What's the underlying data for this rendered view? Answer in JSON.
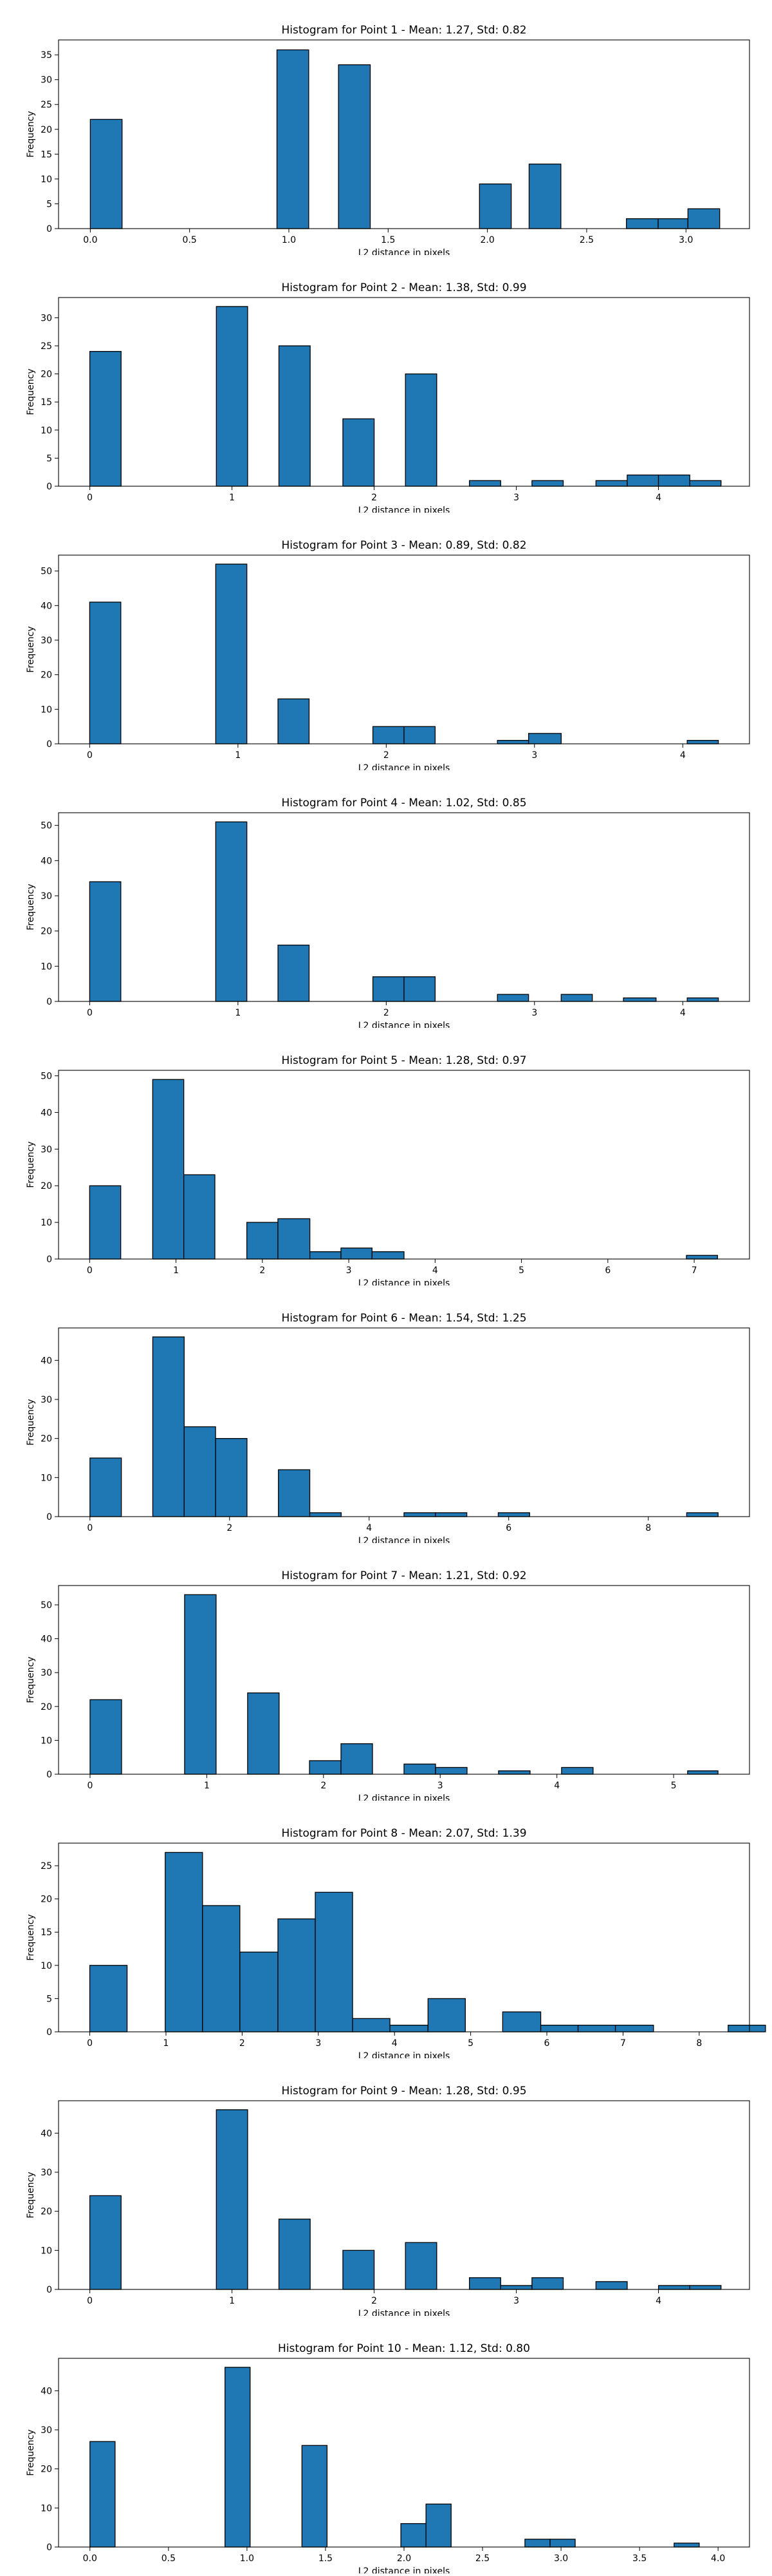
{
  "chart_data": [
    {
      "type": "bar",
      "title": "Histogram for Point 1 - Mean: 1.27, Std: 0.82",
      "xlabel": "L2 distance in pixels",
      "ylabel": "Frequency",
      "color": "#1f77b4",
      "xlim": [
        -0.16,
        3.32
      ],
      "ylim": [
        0,
        38
      ],
      "xticks": [
        0.0,
        0.5,
        1.0,
        1.5,
        2.0,
        2.5,
        3.0
      ],
      "xtick_labels": [
        "0.0",
        "0.5",
        "1.0",
        "1.5",
        "2.0",
        "2.5",
        "3.0"
      ],
      "yticks": [
        0,
        5,
        10,
        15,
        20,
        25,
        30,
        35
      ],
      "bins": [
        {
          "x0": 0.0,
          "x1": 0.16,
          "count": 22
        },
        {
          "x0": 0.94,
          "x1": 1.1,
          "count": 36
        },
        {
          "x0": 1.25,
          "x1": 1.41,
          "count": 33
        },
        {
          "x0": 1.96,
          "x1": 2.12,
          "count": 9
        },
        {
          "x0": 2.21,
          "x1": 2.37,
          "count": 13
        },
        {
          "x0": 2.7,
          "x1": 2.86,
          "count": 2
        },
        {
          "x0": 2.86,
          "x1": 3.01,
          "count": 2
        },
        {
          "x0": 3.01,
          "x1": 3.17,
          "count": 4
        }
      ]
    },
    {
      "type": "bar",
      "title": "Histogram for Point 2 - Mean: 1.38, Std: 0.99",
      "xlabel": "L2 distance in pixels",
      "ylabel": "Frequency",
      "color": "#1f77b4",
      "xlim": [
        -0.22,
        4.64
      ],
      "ylim": [
        0,
        33.6
      ],
      "xticks": [
        0,
        1,
        2,
        3,
        4
      ],
      "xtick_labels": [
        "0",
        "1",
        "2",
        "3",
        "4"
      ],
      "yticks": [
        0,
        5,
        10,
        15,
        20,
        25,
        30
      ],
      "bins": [
        {
          "x0": 0.0,
          "x1": 0.22,
          "count": 24
        },
        {
          "x0": 0.89,
          "x1": 1.11,
          "count": 32
        },
        {
          "x0": 1.33,
          "x1": 1.55,
          "count": 25
        },
        {
          "x0": 1.78,
          "x1": 2.0,
          "count": 12
        },
        {
          "x0": 2.22,
          "x1": 2.44,
          "count": 20
        },
        {
          "x0": 2.67,
          "x1": 2.89,
          "count": 1
        },
        {
          "x0": 3.11,
          "x1": 3.33,
          "count": 1
        },
        {
          "x0": 3.56,
          "x1": 3.78,
          "count": 1
        },
        {
          "x0": 3.78,
          "x1": 4.0,
          "count": 2
        },
        {
          "x0": 4.0,
          "x1": 4.22,
          "count": 2
        },
        {
          "x0": 4.22,
          "x1": 4.44,
          "count": 1
        }
      ]
    },
    {
      "type": "bar",
      "title": "Histogram for Point 3 - Mean: 0.89, Std: 0.82",
      "xlabel": "L2 distance in pixels",
      "ylabel": "Frequency",
      "color": "#1f77b4",
      "xlim": [
        -0.21,
        4.45
      ],
      "ylim": [
        0,
        54.6
      ],
      "xticks": [
        0,
        1,
        2,
        3,
        4
      ],
      "xtick_labels": [
        "0",
        "1",
        "2",
        "3",
        "4"
      ],
      "yticks": [
        0,
        10,
        20,
        30,
        40,
        50
      ],
      "bins": [
        {
          "x0": 0.0,
          "x1": 0.21,
          "count": 41
        },
        {
          "x0": 0.85,
          "x1": 1.06,
          "count": 52
        },
        {
          "x0": 1.27,
          "x1": 1.48,
          "count": 13
        },
        {
          "x0": 1.91,
          "x1": 2.12,
          "count": 5
        },
        {
          "x0": 2.12,
          "x1": 2.33,
          "count": 5
        },
        {
          "x0": 2.75,
          "x1": 2.96,
          "count": 1
        },
        {
          "x0": 2.96,
          "x1": 3.18,
          "count": 3
        },
        {
          "x0": 4.03,
          "x1": 4.24,
          "count": 1
        }
      ]
    },
    {
      "type": "bar",
      "title": "Histogram for Point 4 - Mean: 1.02, Std: 0.85",
      "xlabel": "L2 distance in pixels",
      "ylabel": "Frequency",
      "color": "#1f77b4",
      "xlim": [
        -0.21,
        4.45
      ],
      "ylim": [
        0,
        53.6
      ],
      "xticks": [
        0,
        1,
        2,
        3,
        4
      ],
      "xtick_labels": [
        "0",
        "1",
        "2",
        "3",
        "4"
      ],
      "yticks": [
        0,
        10,
        20,
        30,
        40,
        50
      ],
      "bins": [
        {
          "x0": 0.0,
          "x1": 0.21,
          "count": 34
        },
        {
          "x0": 0.85,
          "x1": 1.06,
          "count": 51
        },
        {
          "x0": 1.27,
          "x1": 1.48,
          "count": 16
        },
        {
          "x0": 1.91,
          "x1": 2.12,
          "count": 7
        },
        {
          "x0": 2.12,
          "x1": 2.33,
          "count": 7
        },
        {
          "x0": 2.75,
          "x1": 2.96,
          "count": 2
        },
        {
          "x0": 3.18,
          "x1": 3.39,
          "count": 2
        },
        {
          "x0": 3.6,
          "x1": 3.82,
          "count": 1
        },
        {
          "x0": 4.03,
          "x1": 4.24,
          "count": 1
        }
      ]
    },
    {
      "type": "bar",
      "title": "Histogram for Point 5 - Mean: 1.28, Std: 0.97",
      "xlabel": "L2 distance in pixels",
      "ylabel": "Frequency",
      "color": "#1f77b4",
      "xlim": [
        -0.36,
        7.64
      ],
      "ylim": [
        0,
        51.5
      ],
      "xticks": [
        0,
        1,
        2,
        3,
        4,
        5,
        6,
        7
      ],
      "xtick_labels": [
        "0",
        "1",
        "2",
        "3",
        "4",
        "5",
        "6",
        "7"
      ],
      "yticks": [
        0,
        10,
        20,
        30,
        40,
        50
      ],
      "bins": [
        {
          "x0": 0.0,
          "x1": 0.36,
          "count": 20
        },
        {
          "x0": 0.73,
          "x1": 1.09,
          "count": 49
        },
        {
          "x0": 1.09,
          "x1": 1.45,
          "count": 23
        },
        {
          "x0": 1.82,
          "x1": 2.18,
          "count": 10
        },
        {
          "x0": 2.18,
          "x1": 2.55,
          "count": 11
        },
        {
          "x0": 2.55,
          "x1": 2.91,
          "count": 2
        },
        {
          "x0": 2.91,
          "x1": 3.27,
          "count": 3
        },
        {
          "x0": 3.27,
          "x1": 3.64,
          "count": 2
        },
        {
          "x0": 6.91,
          "x1": 7.27,
          "count": 1
        }
      ]
    },
    {
      "type": "bar",
      "title": "Histogram for Point 6 - Mean: 1.54, Std: 1.25",
      "xlabel": "L2 distance in pixels",
      "ylabel": "Frequency",
      "color": "#1f77b4",
      "xlim": [
        -0.45,
        9.45
      ],
      "ylim": [
        0,
        48.3
      ],
      "xticks": [
        0,
        2,
        4,
        6,
        8
      ],
      "xtick_labels": [
        "0",
        "2",
        "4",
        "6",
        "8"
      ],
      "yticks": [
        0,
        10,
        20,
        30,
        40
      ],
      "bins": [
        {
          "x0": 0.0,
          "x1": 0.45,
          "count": 15
        },
        {
          "x0": 0.9,
          "x1": 1.35,
          "count": 46
        },
        {
          "x0": 1.35,
          "x1": 1.8,
          "count": 23
        },
        {
          "x0": 1.8,
          "x1": 2.25,
          "count": 20
        },
        {
          "x0": 2.7,
          "x1": 3.15,
          "count": 12
        },
        {
          "x0": 3.15,
          "x1": 3.6,
          "count": 1
        },
        {
          "x0": 4.5,
          "x1": 4.95,
          "count": 1
        },
        {
          "x0": 4.95,
          "x1": 5.4,
          "count": 1
        },
        {
          "x0": 5.85,
          "x1": 6.3,
          "count": 1
        },
        {
          "x0": 8.55,
          "x1": 9.0,
          "count": 1
        }
      ]
    },
    {
      "type": "bar",
      "title": "Histogram for Point 7 - Mean: 1.21, Std: 0.92",
      "xlabel": "L2 distance in pixels",
      "ylabel": "Frequency",
      "color": "#1f77b4",
      "xlim": [
        -0.27,
        5.65
      ],
      "ylim": [
        0,
        55.7
      ],
      "xticks": [
        0,
        1,
        2,
        3,
        4,
        5
      ],
      "xtick_labels": [
        "0",
        "1",
        "2",
        "3",
        "4",
        "5"
      ],
      "yticks": [
        0,
        10,
        20,
        30,
        40,
        50
      ],
      "bins": [
        {
          "x0": 0.0,
          "x1": 0.27,
          "count": 22
        },
        {
          "x0": 0.81,
          "x1": 1.08,
          "count": 53
        },
        {
          "x0": 1.35,
          "x1": 1.62,
          "count": 24
        },
        {
          "x0": 1.88,
          "x1": 2.15,
          "count": 4
        },
        {
          "x0": 2.15,
          "x1": 2.42,
          "count": 9
        },
        {
          "x0": 2.69,
          "x1": 2.96,
          "count": 3
        },
        {
          "x0": 2.96,
          "x1": 3.23,
          "count": 2
        },
        {
          "x0": 3.5,
          "x1": 3.77,
          "count": 1
        },
        {
          "x0": 4.04,
          "x1": 4.31,
          "count": 2
        },
        {
          "x0": 5.12,
          "x1": 5.38,
          "count": 1
        }
      ]
    },
    {
      "type": "bar",
      "title": "Histogram for Point 8 - Mean: 2.07, Std: 1.39",
      "xlabel": "L2 distance in pixels",
      "ylabel": "Frequency",
      "color": "#1f77b4",
      "xlim": [
        -0.41,
        8.66
      ],
      "ylim": [
        0,
        28.4
      ],
      "xticks": [
        0,
        1,
        2,
        3,
        4,
        5,
        6,
        7,
        8
      ],
      "xtick_labels": [
        "0",
        "1",
        "2",
        "3",
        "4",
        "5",
        "6",
        "7",
        "8"
      ],
      "yticks": [
        0,
        5,
        10,
        15,
        20,
        25
      ],
      "bins": [
        {
          "x0": 0.0,
          "x1": 0.49,
          "count": 10
        },
        {
          "x0": 0.99,
          "x1": 1.48,
          "count": 27
        },
        {
          "x0": 1.48,
          "x1": 1.97,
          "count": 19
        },
        {
          "x0": 1.97,
          "x1": 2.47,
          "count": 12
        },
        {
          "x0": 2.47,
          "x1": 2.96,
          "count": 17
        },
        {
          "x0": 2.96,
          "x1": 3.45,
          "count": 21
        },
        {
          "x0": 3.45,
          "x1": 3.94,
          "count": 2
        },
        {
          "x0": 3.94,
          "x1": 4.44,
          "count": 1
        },
        {
          "x0": 4.44,
          "x1": 4.93,
          "count": 5
        },
        {
          "x0": 5.42,
          "x1": 5.92,
          "count": 3
        },
        {
          "x0": 5.92,
          "x1": 6.41,
          "count": 1
        },
        {
          "x0": 6.41,
          "x1": 6.9,
          "count": 1
        },
        {
          "x0": 6.9,
          "x1": 7.4,
          "count": 1
        },
        {
          "x0": 8.38,
          "x1": 8.87,
          "count": 1
        }
      ]
    },
    {
      "type": "bar",
      "title": "Histogram for Point 9 - Mean: 1.28, Std: 0.95",
      "xlabel": "L2 distance in pixels",
      "ylabel": "Frequency",
      "color": "#1f77b4",
      "xlim": [
        -0.22,
        4.64
      ],
      "ylim": [
        0,
        48.3
      ],
      "xticks": [
        0,
        1,
        2,
        3,
        4
      ],
      "xtick_labels": [
        "0",
        "1",
        "2",
        "3",
        "4"
      ],
      "yticks": [
        0,
        10,
        20,
        30,
        40
      ],
      "bins": [
        {
          "x0": 0.0,
          "x1": 0.22,
          "count": 24
        },
        {
          "x0": 0.89,
          "x1": 1.11,
          "count": 46
        },
        {
          "x0": 1.33,
          "x1": 1.55,
          "count": 18
        },
        {
          "x0": 1.78,
          "x1": 2.0,
          "count": 10
        },
        {
          "x0": 2.22,
          "x1": 2.44,
          "count": 12
        },
        {
          "x0": 2.67,
          "x1": 2.89,
          "count": 3
        },
        {
          "x0": 2.89,
          "x1": 3.11,
          "count": 1
        },
        {
          "x0": 3.11,
          "x1": 3.33,
          "count": 3
        },
        {
          "x0": 3.56,
          "x1": 3.78,
          "count": 2
        },
        {
          "x0": 4.0,
          "x1": 4.22,
          "count": 1
        },
        {
          "x0": 4.22,
          "x1": 4.44,
          "count": 1
        }
      ]
    },
    {
      "type": "bar",
      "title": "Histogram for Point 10 - Mean: 1.12, Std: 0.80",
      "xlabel": "L2 distance in pixels",
      "ylabel": "Frequency",
      "color": "#1f77b4",
      "xlim": [
        -0.2,
        4.2
      ],
      "ylim": [
        0,
        48.3
      ],
      "xticks": [
        0.0,
        0.5,
        1.0,
        1.5,
        2.0,
        2.5,
        3.0,
        3.5,
        4.0
      ],
      "xtick_labels": [
        "0.0",
        "0.5",
        "1.0",
        "1.5",
        "2.0",
        "2.5",
        "3.0",
        "3.5",
        "4.0"
      ],
      "yticks": [
        0,
        10,
        20,
        30,
        40
      ],
      "bins": [
        {
          "x0": 0.0,
          "x1": 0.16,
          "count": 27
        },
        {
          "x0": 0.86,
          "x1": 1.02,
          "count": 46
        },
        {
          "x0": 1.35,
          "x1": 1.51,
          "count": 26
        },
        {
          "x0": 1.98,
          "x1": 2.14,
          "count": 6
        },
        {
          "x0": 2.14,
          "x1": 2.3,
          "count": 11
        },
        {
          "x0": 2.77,
          "x1": 2.93,
          "count": 2
        },
        {
          "x0": 2.93,
          "x1": 3.09,
          "count": 2
        },
        {
          "x0": 3.72,
          "x1": 3.88,
          "count": 1
        }
      ]
    }
  ]
}
